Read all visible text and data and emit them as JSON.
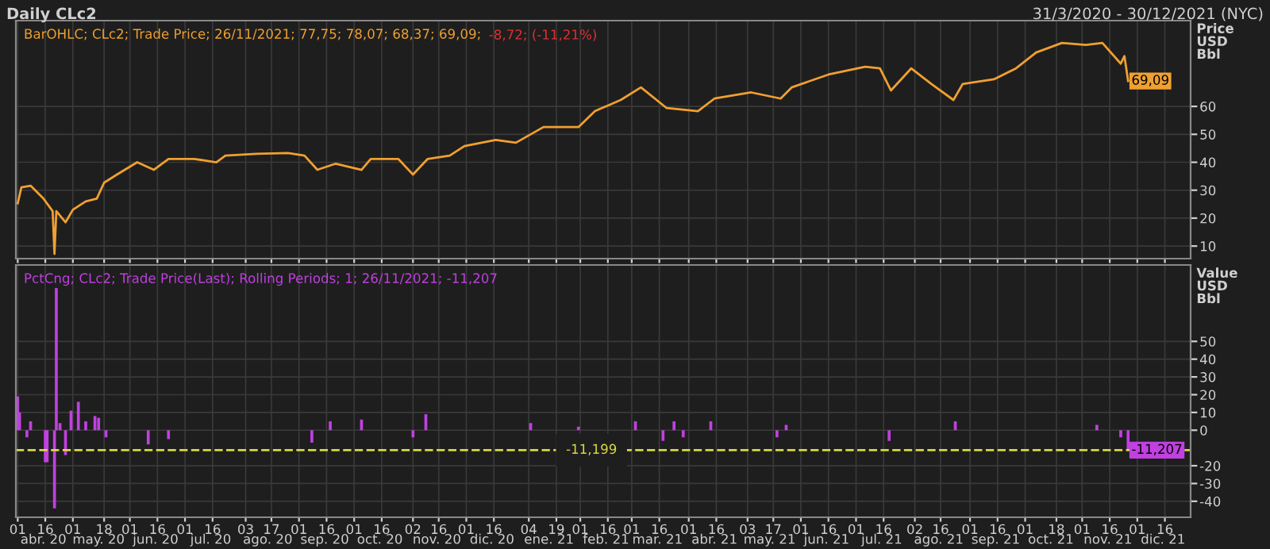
{
  "chart_data": [
    {
      "type": "line",
      "title": "Daily CLc2",
      "subtitle": "31/3/2020 - 30/12/2021 (NYC)",
      "ylabel": "Price\nUSD\nBbl",
      "legend": "top left",
      "grid": true,
      "tick_labels": "y",
      "xlim": [
        "2020-03-31",
        "2021-12-30"
      ],
      "ylim": [
        5.5,
        90.7
      ],
      "yticks": [
        10,
        20,
        30,
        40,
        50,
        60
      ],
      "xticks": [
        {
          "value": "2020-04-01",
          "label": null
        },
        {
          "value": "2020-04-16",
          "label": null
        },
        {
          "value": "2020-05-01",
          "label": null
        },
        {
          "value": "2020-05-18",
          "label": null
        },
        {
          "value": "2020-06-01",
          "label": null
        },
        {
          "value": "2020-06-16",
          "label": null
        },
        {
          "value": "2020-07-01",
          "label": null
        },
        {
          "value": "2020-07-16",
          "label": null
        },
        {
          "value": "2020-08-03",
          "label": null
        },
        {
          "value": "2020-08-17",
          "label": null
        },
        {
          "value": "2020-09-01",
          "label": null
        },
        {
          "value": "2020-09-16",
          "label": null
        },
        {
          "value": "2020-10-01",
          "label": null
        },
        {
          "value": "2020-10-16",
          "label": null
        },
        {
          "value": "2020-11-02",
          "label": null
        },
        {
          "value": "2020-11-16",
          "label": null
        },
        {
          "value": "2020-12-01",
          "label": null
        },
        {
          "value": "2020-12-16",
          "label": null
        },
        {
          "value": "2021-01-04",
          "label": null
        },
        {
          "value": "2021-01-19",
          "label": null
        },
        {
          "value": "2021-02-01",
          "label": null
        },
        {
          "value": "2021-02-16",
          "label": null
        },
        {
          "value": "2021-03-01",
          "label": null
        },
        {
          "value": "2021-03-16",
          "label": null
        },
        {
          "value": "2021-04-01",
          "label": null
        },
        {
          "value": "2021-04-16",
          "label": null
        },
        {
          "value": "2021-05-03",
          "label": null
        },
        {
          "value": "2021-05-17",
          "label": null
        },
        {
          "value": "2021-06-01",
          "label": null
        },
        {
          "value": "2021-06-16",
          "label": null
        },
        {
          "value": "2021-07-01",
          "label": null
        },
        {
          "value": "2021-07-16",
          "label": null
        },
        {
          "value": "2021-08-02",
          "label": null
        },
        {
          "value": "2021-08-16",
          "label": null
        },
        {
          "value": "2021-09-01",
          "label": null
        },
        {
          "value": "2021-09-16",
          "label": null
        },
        {
          "value": "2021-10-01",
          "label": null
        },
        {
          "value": "2021-10-18",
          "label": null
        },
        {
          "value": "2021-11-01",
          "label": null
        },
        {
          "value": "2021-11-16",
          "label": null
        },
        {
          "value": "2021-12-01",
          "label": null
        },
        {
          "value": "2021-12-16",
          "label": null
        }
      ],
      "annotations": [
        "-8,72; (-11,21%)"
      ],
      "series": [
        {
          "name": "BarOHLC; CLc2; Trade Price; 26/11/2021; 77,75; 78,07; 68,37; 69,09;",
          "color": "#f0a030",
          "x": [
            "2020-04-01",
            "2020-04-03",
            "2020-04-08",
            "2020-04-15",
            "2020-04-20",
            "2020-04-21",
            "2020-04-22",
            "2020-04-27",
            "2020-05-01",
            "2020-05-08",
            "2020-05-14",
            "2020-05-18",
            "2020-05-25",
            "2020-06-05",
            "2020-06-14",
            "2020-06-22",
            "2020-07-06",
            "2020-07-18",
            "2020-07-23",
            "2020-08-09",
            "2020-08-26",
            "2020-09-04",
            "2020-09-11",
            "2020-09-21",
            "2020-10-05",
            "2020-10-10",
            "2020-10-25",
            "2020-11-02",
            "2020-11-10",
            "2020-11-22",
            "2020-11-30",
            "2020-12-17",
            "2020-12-28",
            "2021-01-12",
            "2021-01-31",
            "2021-02-09",
            "2021-02-23",
            "2021-03-06",
            "2021-03-20",
            "2021-04-06",
            "2021-04-15",
            "2021-05-05",
            "2021-05-21",
            "2021-05-27",
            "2021-06-16",
            "2021-07-06",
            "2021-07-14",
            "2021-07-20",
            "2021-07-31",
            "2021-08-11",
            "2021-08-23",
            "2021-08-28",
            "2021-09-14",
            "2021-09-26",
            "2021-10-07",
            "2021-10-21",
            "2021-11-03",
            "2021-11-12",
            "2021-11-22",
            "2021-11-24",
            "2021-11-26"
          ],
          "value_labels": [
            null,
            null,
            null,
            null,
            null,
            null,
            null,
            null,
            null,
            null,
            null,
            null,
            null,
            null,
            null,
            null,
            null,
            null,
            null,
            null,
            null,
            null,
            null,
            null,
            null,
            null,
            null,
            null,
            null,
            null,
            null,
            null,
            null,
            null,
            null,
            null,
            null,
            null,
            null,
            null,
            null,
            null,
            null,
            null,
            null,
            null,
            null,
            null,
            null,
            null,
            null,
            null,
            null,
            null,
            null,
            null,
            null,
            null,
            null,
            null,
            "69,09"
          ],
          "values": [
            25.3,
            31,
            31.6,
            27,
            22.5,
            7.2,
            22.5,
            18.5,
            23,
            26,
            27,
            32.7,
            35.6,
            40,
            37.3,
            41.2,
            41.2,
            40,
            42.4,
            43,
            43.3,
            42.4,
            37.3,
            39.5,
            37.3,
            41.2,
            41.2,
            35.6,
            41.2,
            42.4,
            45.8,
            48,
            47,
            52.6,
            52.6,
            58.3,
            62.3,
            66.8,
            59.4,
            58.3,
            62.8,
            65,
            62.8,
            66.8,
            71.4,
            74.2,
            73.6,
            65.7,
            73.6,
            68,
            62.3,
            68,
            69.7,
            73.6,
            79.3,
            82.7,
            82,
            82.7,
            75.3,
            78,
            69.09
          ]
        }
      ]
    },
    {
      "type": "bar",
      "ylabel": "Value\nUSD\nBbl",
      "legend": "top left",
      "grid": true,
      "xlim": [
        "2020-03-31",
        "2021-12-30"
      ],
      "ylim": [
        -49,
        93
      ],
      "yticks": [
        -40,
        -30,
        -20,
        0,
        10,
        20,
        30,
        40,
        50
      ],
      "xticks": [
        {
          "value": "2020-04-01",
          "label": "01"
        },
        {
          "value": "2020-04-16",
          "label": "16"
        },
        {
          "value": "2020-05-01",
          "label": "01"
        },
        {
          "value": "2020-05-18",
          "label": "18"
        },
        {
          "value": "2020-06-01",
          "label": "01"
        },
        {
          "value": "2020-06-16",
          "label": "16"
        },
        {
          "value": "2020-07-01",
          "label": "01"
        },
        {
          "value": "2020-07-16",
          "label": "16"
        },
        {
          "value": "2020-08-03",
          "label": "03"
        },
        {
          "value": "2020-08-17",
          "label": "17"
        },
        {
          "value": "2020-09-01",
          "label": "01"
        },
        {
          "value": "2020-09-16",
          "label": "16"
        },
        {
          "value": "2020-10-01",
          "label": "01"
        },
        {
          "value": "2020-10-16",
          "label": "16"
        },
        {
          "value": "2020-11-02",
          "label": "02"
        },
        {
          "value": "2020-11-16",
          "label": "16"
        },
        {
          "value": "2020-12-01",
          "label": "01"
        },
        {
          "value": "2020-12-16",
          "label": "16"
        },
        {
          "value": "2021-01-04",
          "label": "04"
        },
        {
          "value": "2021-01-19",
          "label": "19"
        },
        {
          "value": "2021-02-01",
          "label": "01"
        },
        {
          "value": "2021-02-16",
          "label": "16"
        },
        {
          "value": "2021-03-01",
          "label": "01"
        },
        {
          "value": "2021-03-16",
          "label": "16"
        },
        {
          "value": "2021-04-01",
          "label": "01"
        },
        {
          "value": "2021-04-16",
          "label": "16"
        },
        {
          "value": "2021-05-03",
          "label": "03"
        },
        {
          "value": "2021-05-17",
          "label": "17"
        },
        {
          "value": "2021-06-01",
          "label": "01"
        },
        {
          "value": "2021-06-16",
          "label": "16"
        },
        {
          "value": "2021-07-01",
          "label": "01"
        },
        {
          "value": "2021-07-16",
          "label": "16"
        },
        {
          "value": "2021-08-02",
          "label": "02"
        },
        {
          "value": "2021-08-16",
          "label": "16"
        },
        {
          "value": "2021-09-01",
          "label": "01"
        },
        {
          "value": "2021-09-16",
          "label": "16"
        },
        {
          "value": "2021-10-01",
          "label": "01"
        },
        {
          "value": "2021-10-18",
          "label": "18"
        },
        {
          "value": "2021-11-01",
          "label": "01"
        },
        {
          "value": "2021-11-16",
          "label": "16"
        },
        {
          "value": "2021-12-01",
          "label": "01"
        },
        {
          "value": "2021-12-16",
          "label": "16"
        }
      ],
      "x2lim": [
        "2020-03-31",
        "2021-12-30"
      ],
      "x2ticks": [
        {
          "value": "2020-04-15",
          "label": "abr. 20"
        },
        {
          "value": "2020-05-15",
          "label": "may. 20"
        },
        {
          "value": "2020-06-15",
          "label": "jun. 20"
        },
        {
          "value": "2020-07-15",
          "label": "jul. 20"
        },
        {
          "value": "2020-08-15",
          "label": "ago. 20"
        },
        {
          "value": "2020-09-15",
          "label": "sep. 20"
        },
        {
          "value": "2020-10-15",
          "label": "oct. 20"
        },
        {
          "value": "2020-11-15",
          "label": "nov. 20"
        },
        {
          "value": "2020-12-15",
          "label": "dic. 20"
        },
        {
          "value": "2021-01-15",
          "label": "ene. 21"
        },
        {
          "value": "2021-02-15",
          "label": "feb. 21"
        },
        {
          "value": "2021-03-15",
          "label": "mar. 21"
        },
        {
          "value": "2021-04-15",
          "label": "abr. 21"
        },
        {
          "value": "2021-05-15",
          "label": "may. 21"
        },
        {
          "value": "2021-06-15",
          "label": "jun. 21"
        },
        {
          "value": "2021-07-15",
          "label": "jul. 21"
        },
        {
          "value": "2021-08-15",
          "label": "ago. 21"
        },
        {
          "value": "2021-09-15",
          "label": "sep. 21"
        },
        {
          "value": "2021-10-15",
          "label": "oct. 21"
        },
        {
          "value": "2021-11-15",
          "label": "nov. 21"
        },
        {
          "value": "2021-12-15",
          "label": "dic. 21"
        }
      ],
      "annotations": [
        {
          "text": "-11,207",
          "x": "2021-11-26",
          "y": -11.207
        }
      ],
      "ref_lines": [
        {
          "axis": "y",
          "value": -11.199,
          "label": "-11,199",
          "color": "#d8d840",
          "line_style": "dashed"
        }
      ],
      "series": [
        {
          "name": "PctCng; CLc2; Trade Price(Last); Rolling Periods; 1; 26/11/2021; -11,207",
          "color": "#c040e0",
          "x": [
            "2020-04-01",
            "2020-04-02",
            "2020-04-06",
            "2020-04-08",
            "2020-04-16",
            "2020-04-17",
            "2020-04-21",
            "2020-04-22",
            "2020-04-24",
            "2020-04-27",
            "2020-04-30",
            "2020-05-04",
            "2020-05-08",
            "2020-05-13",
            "2020-05-15",
            "2020-05-19",
            "2020-06-11",
            "2020-06-22",
            "2020-09-08",
            "2020-09-18",
            "2020-10-05",
            "2020-11-02",
            "2020-11-09",
            "2021-01-05",
            "2021-01-31",
            "2021-03-03",
            "2021-03-18",
            "2021-03-24",
            "2021-03-29",
            "2021-04-13",
            "2021-05-19",
            "2021-05-24",
            "2021-07-19",
            "2021-08-24",
            "2021-11-09",
            "2021-11-22",
            "2021-11-26"
          ],
          "values": [
            19,
            10,
            -4,
            5,
            -18,
            -18,
            -44,
            80,
            4,
            -14,
            11,
            16,
            5,
            8,
            7,
            -4,
            -8,
            -5,
            -7,
            5,
            6,
            -4,
            9,
            4,
            2,
            5,
            -6,
            5,
            -4,
            5,
            -4,
            3,
            -6,
            5,
            3,
            -4,
            -11.207
          ]
        }
      ]
    }
  ]
}
